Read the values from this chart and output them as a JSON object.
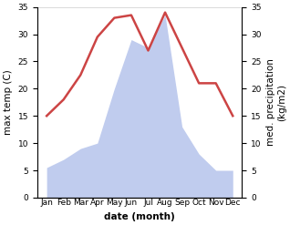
{
  "months": [
    "Jan",
    "Feb",
    "Mar",
    "Apr",
    "May",
    "Jun",
    "Jul",
    "Aug",
    "Sep",
    "Oct",
    "Nov",
    "Dec"
  ],
  "temperature": [
    15.0,
    18.0,
    22.5,
    29.5,
    33.0,
    33.5,
    27.0,
    34.0,
    27.5,
    21.0,
    21.0,
    15.0
  ],
  "precipitation": [
    5.5,
    7.0,
    9.0,
    10.0,
    20.0,
    29.0,
    27.5,
    33.5,
    13.0,
    8.0,
    5.0,
    5.0
  ],
  "temp_color": "#cc4444",
  "precip_color": "#c0ccee",
  "ylim": [
    0,
    35
  ],
  "yticks": [
    0,
    5,
    10,
    15,
    20,
    25,
    30,
    35
  ],
  "ylabel_left": "max temp (C)",
  "ylabel_right": "med. precipitation\n(kg/m2)",
  "xlabel": "date (month)",
  "bg_color": "#ffffff",
  "temp_linewidth": 1.8,
  "tick_fontsize": 6.5,
  "label_fontsize": 7.5
}
